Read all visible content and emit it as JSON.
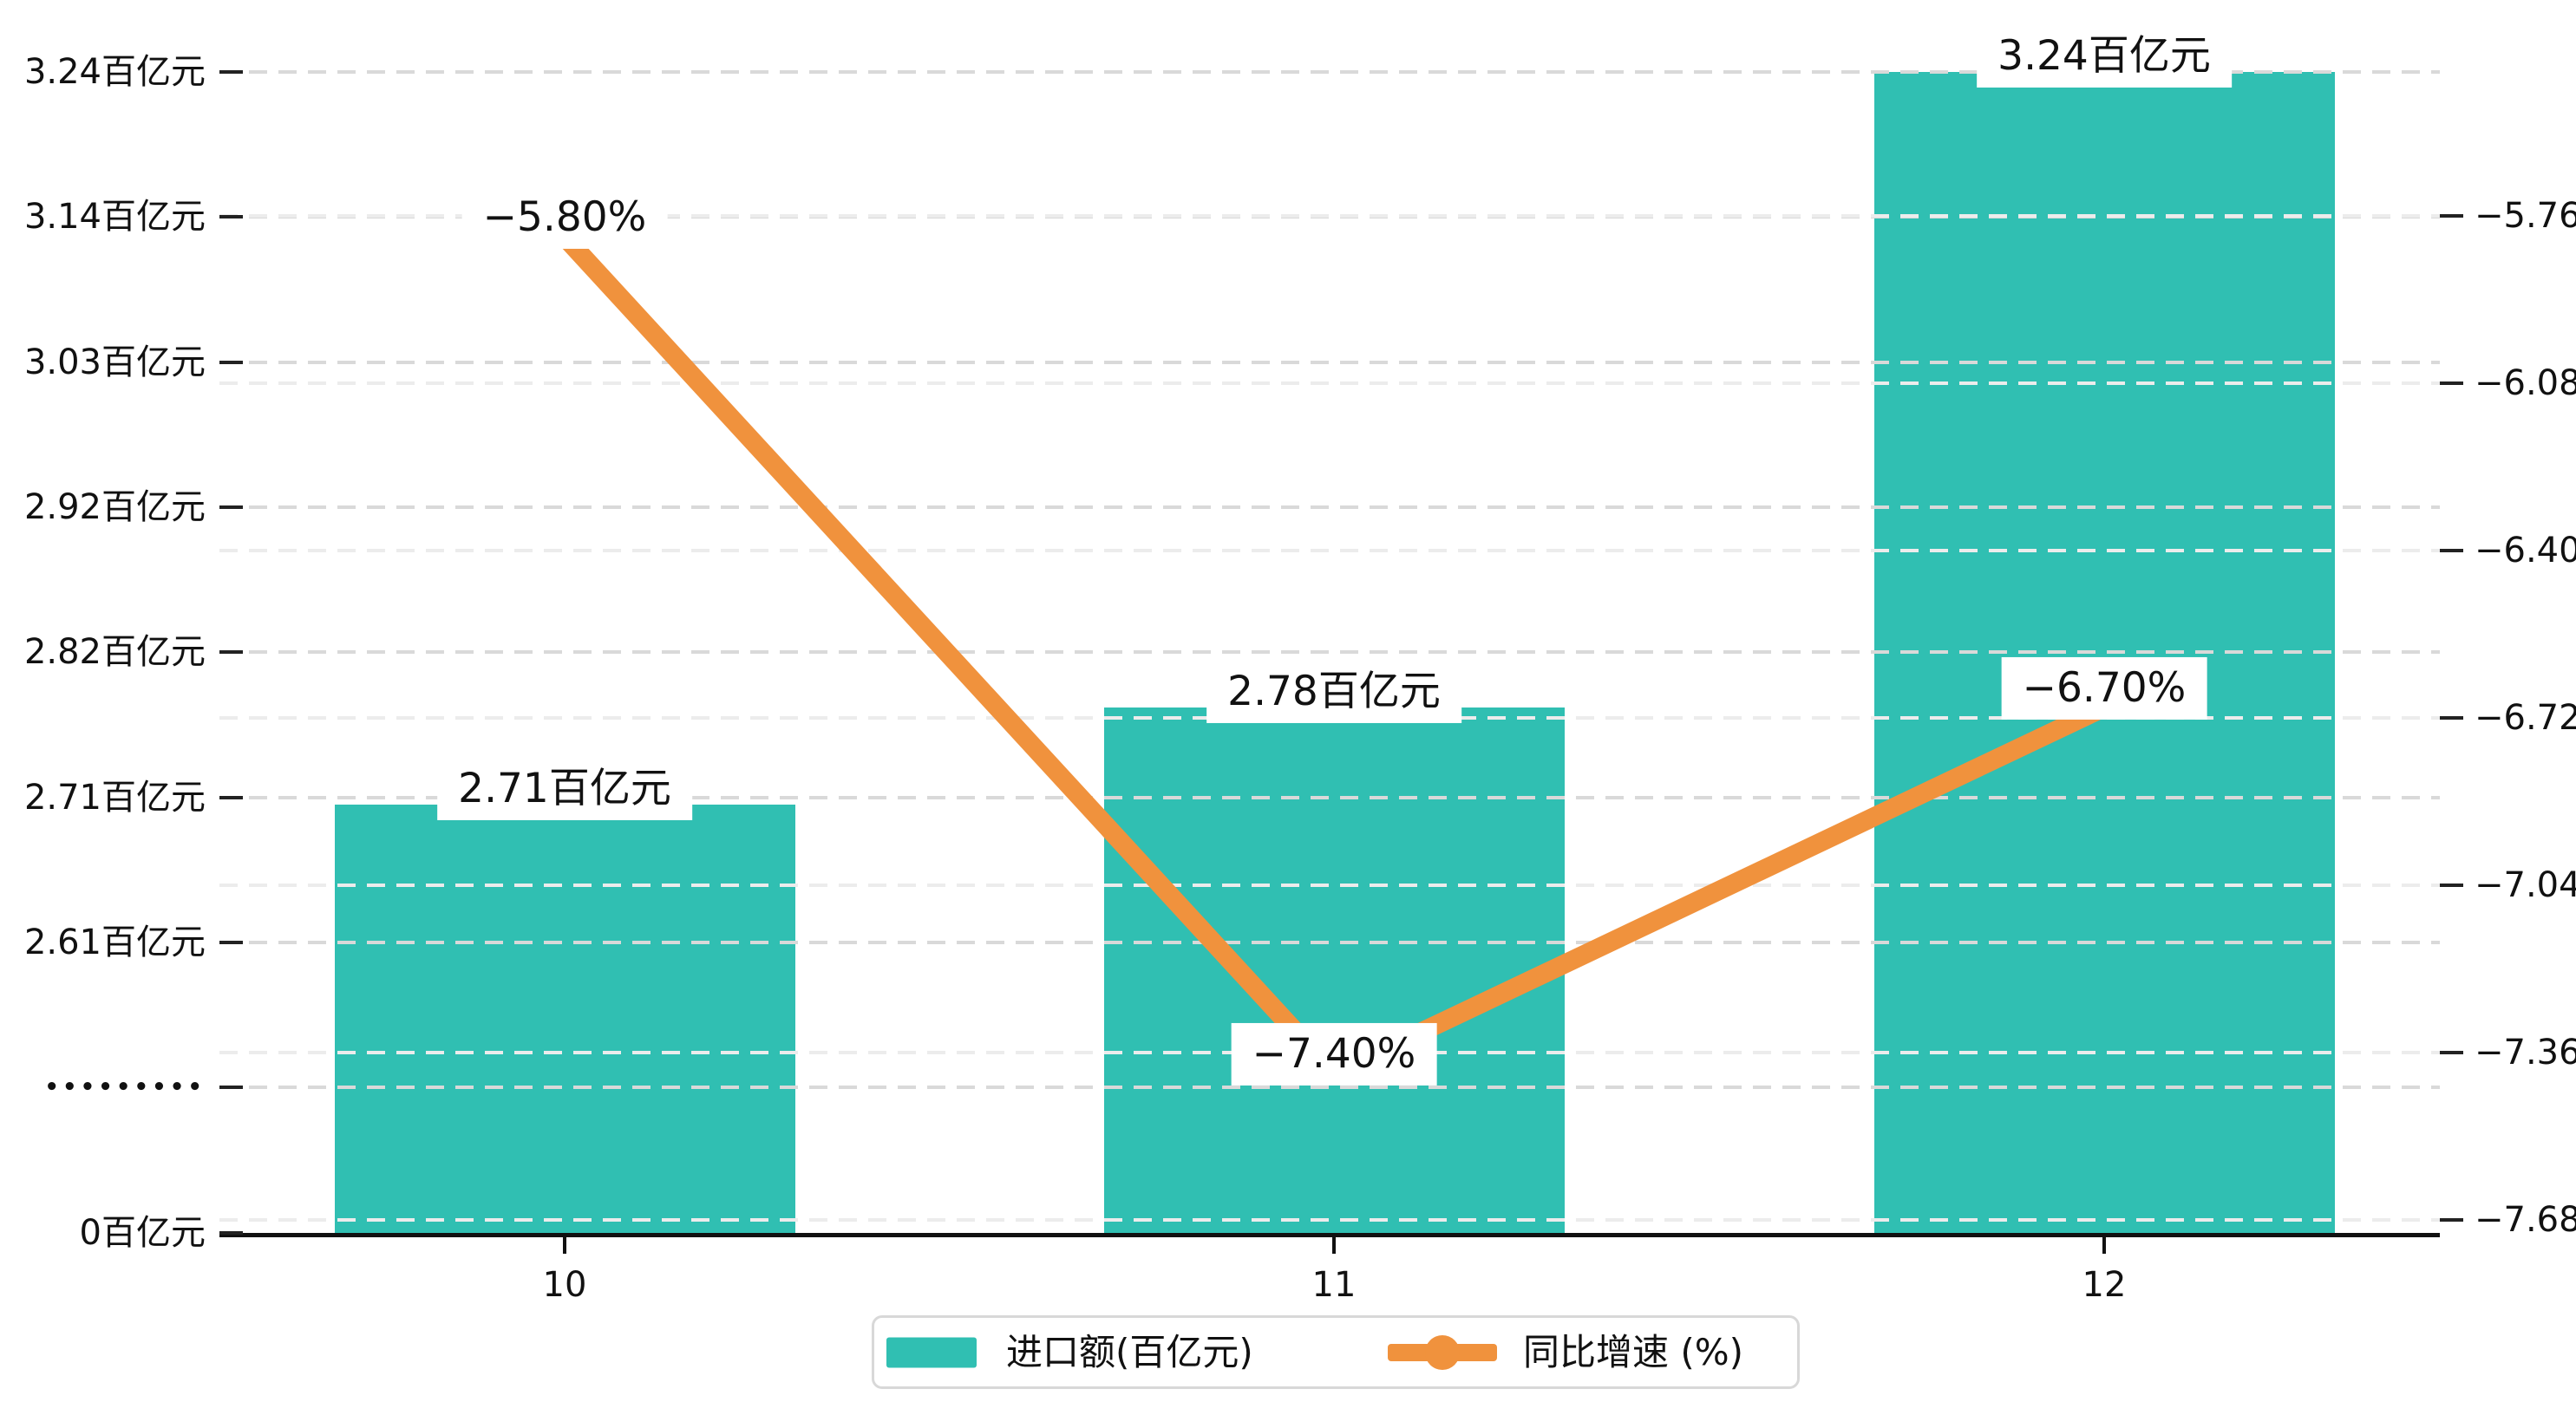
{
  "chart_data": {
    "type": "bar",
    "subtype": "bar+line dual-axis combo",
    "categories": [
      "10",
      "11",
      "12"
    ],
    "series": [
      {
        "name": "进口额(百亿元)",
        "type": "bar",
        "values": [
          2.71,
          2.78,
          3.24
        ],
        "value_labels": [
          "2.71百亿元",
          "2.78百亿元",
          "3.24百亿元"
        ],
        "color": "#30bfb2"
      },
      {
        "name": "同比增速 (%)",
        "type": "line",
        "values": [
          -5.8,
          -7.4,
          -6.7
        ],
        "value_labels": [
          "−5.80%",
          "−7.40%",
          "−6.70%"
        ],
        "color": "#f0923d"
      }
    ],
    "left_axis": {
      "tick_labels": [
        "3.24百亿元",
        "3.14百亿元",
        "3.03百亿元",
        "2.92百亿元",
        "2.82百亿元",
        "2.71百亿元",
        "2.61百亿元",
        "•••••••••",
        "0百亿元"
      ],
      "broken_axis_marker": "•••••••••",
      "value_top": 3.24,
      "value_at_261_line": 2.61,
      "grid": "dashed"
    },
    "right_axis": {
      "tick_labels": [
        "−5.76",
        "−6.08",
        "−6.40",
        "−6.72",
        "−7.04",
        "−7.36",
        "−7.68"
      ],
      "max": -5.76,
      "min": -7.68,
      "step": -0.32,
      "grid": "dashed-faint"
    },
    "legend": {
      "position": "bottom-center",
      "items": [
        {
          "label": "进口额(百亿元)",
          "marker": "bar-swatch",
          "color": "#30bfb2"
        },
        {
          "label": "同比增速 (%)",
          "marker": "line-dot",
          "color": "#f0923d"
        }
      ]
    },
    "title": "",
    "grid_on": true
  }
}
